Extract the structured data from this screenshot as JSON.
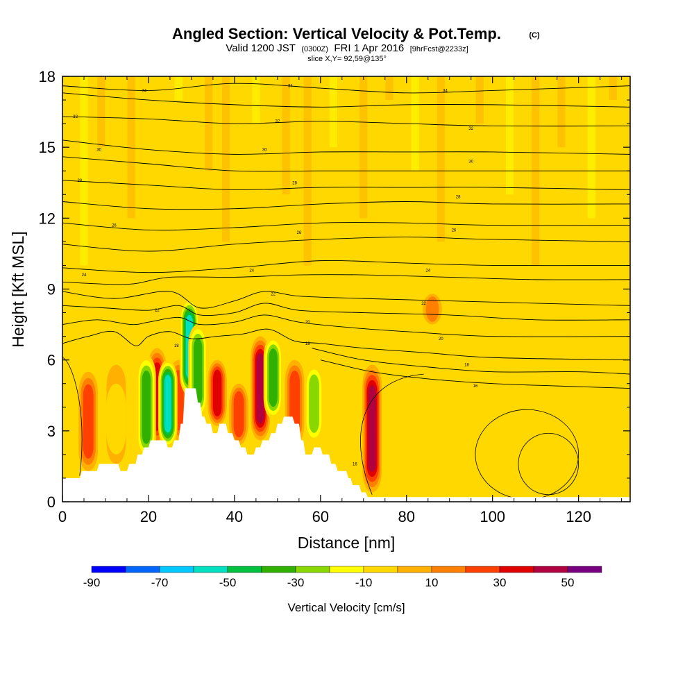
{
  "chart_data": {
    "type": "heatmap",
    "title": "Angled Section: Vertical Velocity & Pot.Temp.",
    "title_mark": "(C)",
    "subtitle_parts": [
      "Valid 1200 JST",
      "(0300Z)",
      "FRI 1 Apr 2016",
      "[9hrFcst@2233z]"
    ],
    "slice_label": "slice X,Y= 92,59@135°",
    "xlabel": "Distance [nm]",
    "ylabel": "Height [Kft MSL]",
    "xlim": [
      0,
      132
    ],
    "ylim": [
      0,
      18
    ],
    "x_ticks": [
      0,
      20,
      40,
      60,
      80,
      100,
      120
    ],
    "y_ticks": [
      0,
      3,
      6,
      9,
      12,
      15,
      18
    ],
    "grid": false,
    "colorbar": {
      "label": "Vertical Velocity [cm/s]",
      "tick_labels": [
        "-90",
        "-70",
        "-50",
        "-30",
        "-10",
        "10",
        "30",
        "50"
      ],
      "bins": [
        -90,
        -80,
        -70,
        -60,
        -50,
        -40,
        -30,
        -20,
        -10,
        0,
        10,
        20,
        30,
        40,
        50,
        60
      ],
      "colors": [
        "#0000ff",
        "#0066ff",
        "#00c8ff",
        "#00e0c0",
        "#00c040",
        "#30b000",
        "#88d800",
        "#ffff00",
        "#ffd800",
        "#ffb000",
        "#ff8000",
        "#ff4000",
        "#e00000",
        "#b00040",
        "#780080"
      ]
    },
    "background_value": -5,
    "updraft_cells": [
      {
        "x": 6,
        "bottom": 1.3,
        "top": 5.5,
        "peak": 35
      },
      {
        "x": 12.5,
        "bottom": 1.6,
        "top": 5.8,
        "peak": 12
      },
      {
        "x": 22,
        "bottom": 2.4,
        "top": 6.5,
        "peak": 48
      },
      {
        "x": 27,
        "bottom": 2.6,
        "top": 6.0,
        "peak": 35
      },
      {
        "x": 36,
        "bottom": 3.2,
        "top": 6.0,
        "peak": 42
      },
      {
        "x": 41,
        "bottom": 2.4,
        "top": 5.0,
        "peak": 30
      },
      {
        "x": 46,
        "bottom": 2.6,
        "top": 7.0,
        "peak": 55
      },
      {
        "x": 54,
        "bottom": 2.4,
        "top": 6.0,
        "peak": 32
      },
      {
        "x": 72,
        "bottom": 0.4,
        "top": 5.8,
        "peak": 58
      },
      {
        "x": 86,
        "bottom": 7.5,
        "top": 8.8,
        "peak": 20
      }
    ],
    "downdraft_cells": [
      {
        "x": 19.5,
        "bottom": 1.8,
        "top": 6.2,
        "peak": -45
      },
      {
        "x": 24.5,
        "bottom": 2.3,
        "top": 6.0,
        "peak": -62
      },
      {
        "x": 29.5,
        "bottom": 4.5,
        "top": 8.6,
        "peak": -68
      },
      {
        "x": 31.5,
        "bottom": 3.5,
        "top": 7.5,
        "peak": -40
      },
      {
        "x": 49,
        "bottom": 3.5,
        "top": 7.0,
        "peak": -45
      },
      {
        "x": 58.5,
        "bottom": 2.5,
        "top": 5.8,
        "peak": -32
      },
      {
        "x": 12.5,
        "bottom": 2.0,
        "top": 5.0,
        "peak": -14
      }
    ],
    "terrain": [
      [
        0,
        1.0
      ],
      [
        4,
        1.0
      ],
      [
        4.5,
        1.3
      ],
      [
        8,
        1.3
      ],
      [
        8.5,
        1.6
      ],
      [
        13,
        1.6
      ],
      [
        13.5,
        1.3
      ],
      [
        15,
        1.3
      ],
      [
        15.5,
        1.6
      ],
      [
        17,
        1.6
      ],
      [
        17.5,
        2.0
      ],
      [
        18.5,
        2.0
      ],
      [
        19,
        2.3
      ],
      [
        20,
        2.3
      ],
      [
        20.5,
        2.6
      ],
      [
        24,
        2.6
      ],
      [
        24.5,
        2.3
      ],
      [
        25.5,
        2.3
      ],
      [
        26,
        2.6
      ],
      [
        27,
        2.6
      ],
      [
        27.5,
        3.3
      ],
      [
        28,
        3.3
      ],
      [
        28.5,
        4.8
      ],
      [
        31,
        4.8
      ],
      [
        31.5,
        4.2
      ],
      [
        32,
        4.2
      ],
      [
        32.5,
        3.6
      ],
      [
        33,
        3.6
      ],
      [
        33.5,
        3.3
      ],
      [
        34.5,
        3.3
      ],
      [
        35,
        2.9
      ],
      [
        36,
        2.9
      ],
      [
        36.5,
        3.3
      ],
      [
        38,
        3.3
      ],
      [
        38.5,
        2.9
      ],
      [
        39.5,
        2.9
      ],
      [
        40,
        2.6
      ],
      [
        41,
        2.6
      ],
      [
        41.5,
        2.3
      ],
      [
        42.5,
        2.3
      ],
      [
        43,
        2.0
      ],
      [
        44.5,
        2.0
      ],
      [
        45,
        2.3
      ],
      [
        46,
        2.3
      ],
      [
        46.5,
        2.6
      ],
      [
        48,
        2.6
      ],
      [
        48.5,
        2.9
      ],
      [
        49.5,
        2.9
      ],
      [
        50,
        3.3
      ],
      [
        51,
        3.3
      ],
      [
        51.5,
        3.6
      ],
      [
        53.5,
        3.6
      ],
      [
        54,
        3.3
      ],
      [
        55,
        3.3
      ],
      [
        55.5,
        2.6
      ],
      [
        56,
        2.6
      ],
      [
        56.5,
        2.0
      ],
      [
        58,
        2.0
      ],
      [
        58.5,
        2.3
      ],
      [
        60,
        2.3
      ],
      [
        60.5,
        2.0
      ],
      [
        62,
        2.0
      ],
      [
        62.5,
        1.6
      ],
      [
        63.5,
        1.6
      ],
      [
        64,
        1.3
      ],
      [
        66,
        1.3
      ],
      [
        66.5,
        1.0
      ],
      [
        67,
        1.0
      ],
      [
        67.5,
        0.7
      ],
      [
        69,
        0.7
      ],
      [
        69.5,
        0.4
      ],
      [
        70.5,
        0.4
      ],
      [
        71,
        0.2
      ],
      [
        132,
        0.2
      ]
    ],
    "isentropes": [
      {
        "value": 34,
        "pts": [
          [
            0,
            17.6
          ],
          [
            20,
            17.4
          ],
          [
            40,
            17.7
          ],
          [
            60,
            17.5
          ],
          [
            80,
            17.3
          ],
          [
            100,
            17.4
          ],
          [
            132,
            17.6
          ]
        ]
      },
      {
        "value": 32,
        "pts": [
          [
            0,
            17.3
          ],
          [
            20,
            17.0
          ],
          [
            40,
            16.8
          ],
          [
            60,
            16.7
          ],
          [
            80,
            16.8
          ],
          [
            100,
            16.8
          ],
          [
            132,
            16.7
          ]
        ]
      },
      {
        "value": 32,
        "pts": [
          [
            0,
            16.3
          ],
          [
            20,
            16.2
          ],
          [
            40,
            16.0
          ],
          [
            60,
            16.1
          ],
          [
            80,
            16.0
          ],
          [
            100,
            15.9
          ],
          [
            132,
            15.9
          ]
        ]
      },
      {
        "value": 30,
        "pts": [
          [
            0,
            15.3
          ],
          [
            20,
            14.9
          ],
          [
            40,
            14.7
          ],
          [
            60,
            14.8
          ],
          [
            80,
            14.8
          ],
          [
            100,
            14.8
          ],
          [
            132,
            14.7
          ]
        ]
      },
      {
        "value": 28,
        "pts": [
          [
            0,
            14.6
          ],
          [
            20,
            14.3
          ],
          [
            40,
            14.0
          ],
          [
            60,
            14.0
          ],
          [
            80,
            14.0
          ],
          [
            100,
            14.0
          ],
          [
            132,
            14.0
          ]
        ]
      },
      {
        "value": 28,
        "pts": [
          [
            0,
            13.6
          ],
          [
            20,
            13.4
          ],
          [
            40,
            13.2
          ],
          [
            60,
            13.3
          ],
          [
            80,
            13.3
          ],
          [
            100,
            13.3
          ],
          [
            132,
            13.2
          ]
        ]
      },
      {
        "value": 26,
        "pts": [
          [
            0,
            12.7
          ],
          [
            20,
            12.4
          ],
          [
            40,
            12.4
          ],
          [
            60,
            12.6
          ],
          [
            80,
            12.7
          ],
          [
            100,
            12.6
          ],
          [
            132,
            12.6
          ]
        ]
      },
      {
        "value": 24,
        "pts": [
          [
            0,
            11.8
          ],
          [
            20,
            11.5
          ],
          [
            40,
            11.6
          ],
          [
            60,
            11.8
          ],
          [
            80,
            11.8
          ],
          [
            100,
            11.7
          ],
          [
            132,
            11.7
          ]
        ]
      },
      {
        "value": 24,
        "pts": [
          [
            0,
            10.9
          ],
          [
            20,
            10.6
          ],
          [
            40,
            10.9
          ],
          [
            60,
            11.1
          ],
          [
            80,
            11.2
          ],
          [
            100,
            11.1
          ],
          [
            132,
            11.0
          ]
        ]
      },
      {
        "value": 22,
        "pts": [
          [
            0,
            9.9
          ],
          [
            20,
            9.7
          ],
          [
            40,
            9.9
          ],
          [
            60,
            10.2
          ],
          [
            80,
            10.1
          ],
          [
            100,
            10.0
          ],
          [
            132,
            10.0
          ]
        ]
      },
      {
        "value": 24,
        "pts": [
          [
            0,
            9.3
          ],
          [
            15,
            9.2
          ],
          [
            25,
            9.5
          ],
          [
            40,
            9.5
          ],
          [
            55,
            9.6
          ],
          [
            70,
            9.6
          ],
          [
            90,
            9.5
          ],
          [
            110,
            9.4
          ],
          [
            132,
            9.4
          ]
        ]
      },
      {
        "value": 22,
        "pts": [
          [
            0,
            8.9
          ],
          [
            12,
            8.6
          ],
          [
            25,
            8.9
          ],
          [
            32,
            8.2
          ],
          [
            40,
            8.5
          ],
          [
            47,
            8.9
          ],
          [
            55,
            8.7
          ],
          [
            70,
            8.6
          ],
          [
            90,
            8.5
          ],
          [
            110,
            8.4
          ],
          [
            132,
            8.3
          ]
        ]
      },
      {
        "value": 20,
        "pts": [
          [
            0,
            8.3
          ],
          [
            10,
            8.2
          ],
          [
            20,
            8.1
          ],
          [
            27,
            8.3
          ],
          [
            32,
            7.9
          ],
          [
            40,
            8.0
          ],
          [
            47,
            8.4
          ],
          [
            55,
            8.1
          ],
          [
            70,
            8.0
          ],
          [
            90,
            7.9
          ],
          [
            110,
            7.7
          ],
          [
            132,
            7.7
          ]
        ]
      },
      {
        "value": 20,
        "pts": [
          [
            0,
            7.5
          ],
          [
            8,
            7.7
          ],
          [
            16,
            7.5
          ],
          [
            20,
            7.6
          ],
          [
            27,
            7.8
          ],
          [
            32,
            7.5
          ],
          [
            40,
            7.6
          ],
          [
            47,
            7.9
          ],
          [
            55,
            7.6
          ],
          [
            65,
            7.4
          ],
          [
            80,
            7.2
          ],
          [
            100,
            7.0
          ],
          [
            132,
            7.0
          ]
        ]
      },
      {
        "value": 18,
        "pts": [
          [
            0,
            6.7
          ],
          [
            6,
            7.0
          ],
          [
            12,
            7.2
          ],
          [
            17,
            6.6
          ],
          [
            20,
            7.0
          ],
          [
            25,
            7.2
          ],
          [
            30,
            6.9
          ],
          [
            36,
            7.0
          ],
          [
            42,
            7.1
          ],
          [
            48,
            7.3
          ],
          [
            54,
            6.8
          ],
          [
            60,
            6.7
          ],
          [
            70,
            6.5
          ],
          [
            85,
            6.3
          ],
          [
            100,
            6.1
          ],
          [
            132,
            6.0
          ]
        ]
      },
      {
        "value": 16,
        "pts": [
          [
            58,
            6.5
          ],
          [
            70,
            6.0
          ],
          [
            85,
            5.7
          ],
          [
            100,
            5.5
          ],
          [
            120,
            5.5
          ],
          [
            132,
            5.4
          ]
        ]
      },
      {
        "value": 14,
        "pts": [
          [
            60,
            6.0
          ],
          [
            72,
            5.5
          ],
          [
            85,
            5.2
          ],
          [
            100,
            5.0
          ],
          [
            115,
            4.9
          ],
          [
            132,
            4.8
          ]
        ]
      }
    ],
    "contour_labels": [
      {
        "x": 19,
        "y": 17.4,
        "text": "34"
      },
      {
        "x": 53,
        "y": 17.6,
        "text": "34"
      },
      {
        "x": 89,
        "y": 17.4,
        "text": "34"
      },
      {
        "x": 3,
        "y": 16.3,
        "text": "32"
      },
      {
        "x": 50,
        "y": 16.1,
        "text": "32"
      },
      {
        "x": 95,
        "y": 15.8,
        "text": "32"
      },
      {
        "x": 8.5,
        "y": 14.9,
        "text": "30"
      },
      {
        "x": 47,
        "y": 14.9,
        "text": "30"
      },
      {
        "x": 95,
        "y": 14.4,
        "text": "30"
      },
      {
        "x": 4,
        "y": 13.6,
        "text": "28"
      },
      {
        "x": 54,
        "y": 13.5,
        "text": "28"
      },
      {
        "x": 92,
        "y": 12.9,
        "text": "28"
      },
      {
        "x": 12,
        "y": 11.7,
        "text": "26"
      },
      {
        "x": 55,
        "y": 11.4,
        "text": "26"
      },
      {
        "x": 91,
        "y": 11.5,
        "text": "26"
      },
      {
        "x": 5,
        "y": 9.6,
        "text": "24"
      },
      {
        "x": 44,
        "y": 9.8,
        "text": "24"
      },
      {
        "x": 85,
        "y": 9.8,
        "text": "24"
      },
      {
        "x": 22,
        "y": 8.1,
        "text": "22"
      },
      {
        "x": 49,
        "y": 8.8,
        "text": "22"
      },
      {
        "x": 84,
        "y": 8.4,
        "text": "22"
      },
      {
        "x": 57,
        "y": 7.6,
        "text": "20"
      },
      {
        "x": 88,
        "y": 6.9,
        "text": "20"
      },
      {
        "x": 26.5,
        "y": 6.6,
        "text": "18"
      },
      {
        "x": 57,
        "y": 6.7,
        "text": "18"
      },
      {
        "x": 94,
        "y": 5.8,
        "text": "18"
      },
      {
        "x": 96,
        "y": 4.9,
        "text": "16"
      },
      {
        "x": 68,
        "y": 1.6,
        "text": "16"
      }
    ]
  }
}
